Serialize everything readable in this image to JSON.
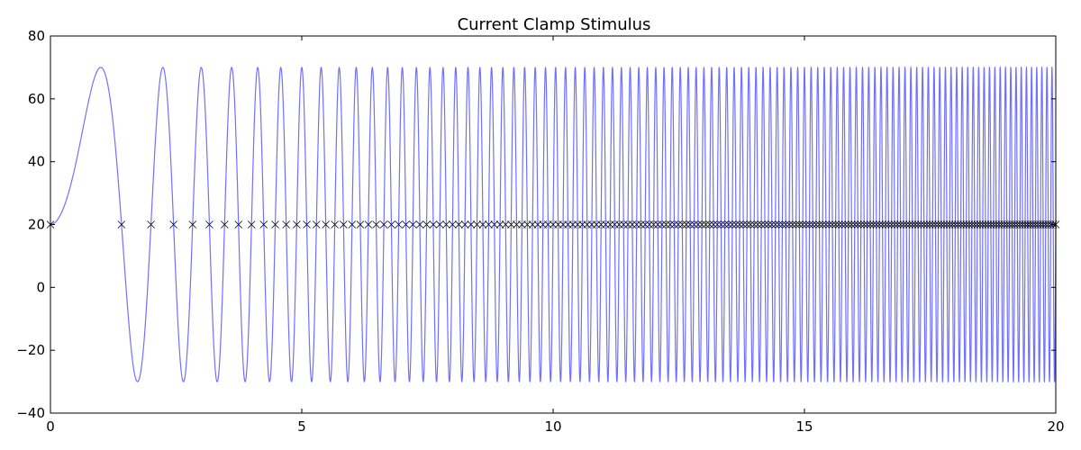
{
  "chart_data": {
    "type": "line",
    "title": "Current Clamp Stimulus",
    "xlabel": "",
    "ylabel": "",
    "xlim": [
      0,
      20
    ],
    "ylim": [
      -40,
      80
    ],
    "x_ticks": [
      0,
      5,
      10,
      15,
      20
    ],
    "y_ticks": [
      -40,
      -20,
      0,
      20,
      40,
      60,
      80
    ],
    "x_tick_labels": [
      "0",
      "5",
      "10",
      "15",
      "20"
    ],
    "y_tick_labels": [
      "−40",
      "−20",
      "0",
      "20",
      "40",
      "60",
      "80"
    ],
    "grid": false,
    "legend": "none",
    "series": [
      {
        "kind": "line",
        "signal": "chirp",
        "offset": 20,
        "amplitude": 50,
        "min": -30,
        "max": 70,
        "x_start": 0,
        "x_end": 20,
        "zero_crossing_times": [
          0,
          1.414,
          2.0,
          2.449,
          2.828,
          3.162,
          3.464,
          3.742,
          4.0,
          4.243,
          4.472,
          4.69,
          4.899,
          5.099,
          5.292,
          5.477,
          5.657,
          5.831,
          6.0
        ],
        "zero_crossing_times_rule": "t_k = sqrt(2k), continuing up to t = 20",
        "color": "#7070ff"
      },
      {
        "kind": "markers",
        "marker": "x",
        "y": 20,
        "x_rule": "x_k = sqrt(2k) for k = 0..200",
        "color": "#000000"
      }
    ]
  }
}
